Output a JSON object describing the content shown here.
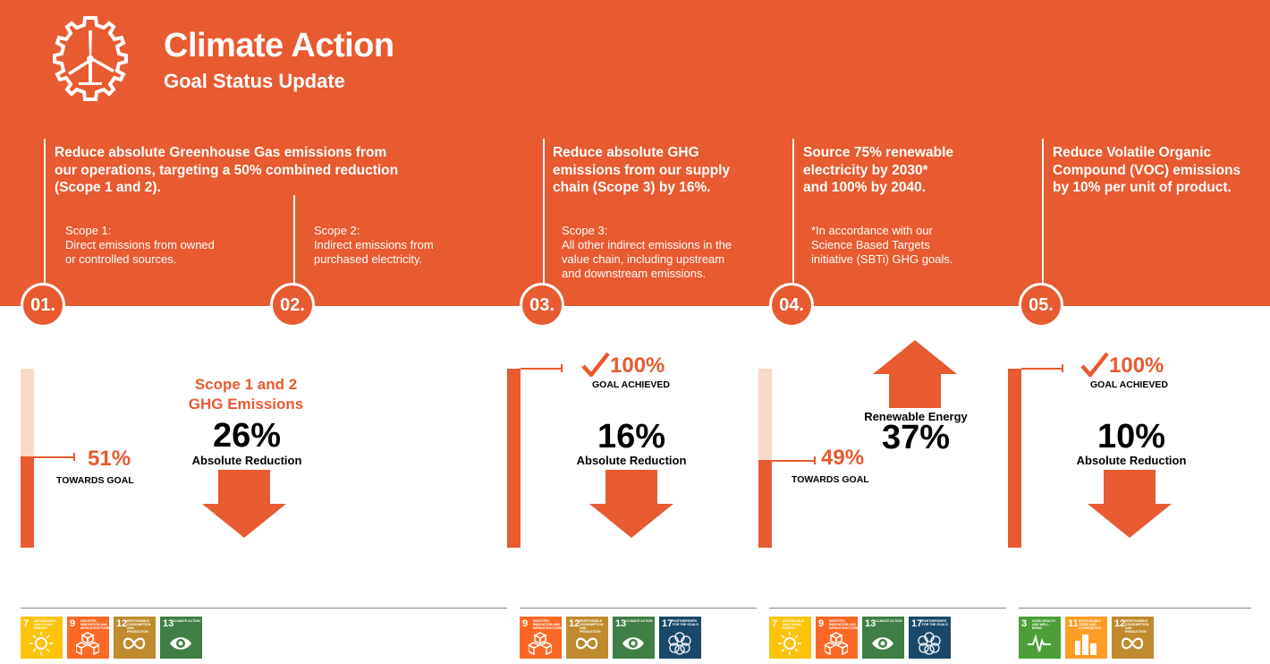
{
  "header": {
    "title": "Climate Action",
    "subtitle": "Goal Status Update",
    "icon": "wind-turbine-gear-icon"
  },
  "goals": [
    {
      "text": [
        "Reduce absolute Greenhouse Gas emissions from",
        "our operations, targeting a 50% combined reduction",
        "(Scope 1 and 2)."
      ]
    },
    {
      "text": [
        "Reduce absolute GHG",
        "emissions from our supply",
        "chain (Scope 3) by 16%."
      ]
    },
    {
      "text": [
        "Source 75% renewable",
        "electricity by 2030*",
        "and 100% by 2040."
      ]
    },
    {
      "text": [
        "Reduce Volatile Organic",
        "Compound (VOC) emissions",
        "by 10% per unit of product."
      ]
    }
  ],
  "notes": {
    "scope1": [
      "Scope 1:",
      "Direct emissions from owned",
      "or controlled sources."
    ],
    "scope2": [
      "Scope 2:",
      "Indirect emissions from",
      "purchased electricity."
    ],
    "scope3": [
      "Scope 3:",
      "All other indirect emissions in the",
      "value chain, including upstream",
      "and downstream emissions."
    ],
    "sbti": [
      "*In accordance with our",
      "Science Based Targets",
      "initiative (SBTi) GHG goals."
    ]
  },
  "badges": [
    "01.",
    "02.",
    "03.",
    "04.",
    "05."
  ],
  "progress": {
    "g1": {
      "fraction": 0.51,
      "pct": "51%",
      "label": "TOWARDS GOAL"
    },
    "g3": {
      "fraction": 1.0,
      "pct": "100%",
      "label": "GOAL ACHIEVED"
    },
    "g4": {
      "fraction": 0.49,
      "pct": "49%",
      "label": "TOWARDS GOAL"
    },
    "g5": {
      "fraction": 1.0,
      "pct": "100%",
      "label": "GOAL ACHIEVED"
    }
  },
  "results": {
    "g1": {
      "title": [
        "Scope 1 and 2",
        "GHG Emissions"
      ],
      "value": "26%",
      "caption": "Absolute Reduction",
      "direction": "down"
    },
    "g3": {
      "value": "16%",
      "caption": "Absolute Reduction",
      "direction": "down"
    },
    "g4": {
      "title": "Renewable Energy",
      "value": "37%",
      "direction": "up"
    },
    "g5": {
      "value": "10%",
      "caption": "Absolute Reduction",
      "direction": "down"
    }
  },
  "sdg_groups": [
    [
      {
        "num": "7",
        "label": "AFFORDABLE AND CLEAN ENERGY",
        "color": "#FCC30B",
        "icon": "sun-icon"
      },
      {
        "num": "9",
        "label": "INDUSTRY, INNOVATION AND INFRASTRUCTURE",
        "color": "#FD6925",
        "icon": "cubes-icon"
      },
      {
        "num": "12",
        "label": "RESPONSIBLE CONSUMPTION AND PRODUCTION",
        "color": "#BF8B2E",
        "icon": "infinity-icon"
      },
      {
        "num": "13",
        "label": "CLIMATE ACTION",
        "color": "#3F7E44",
        "icon": "eye-icon"
      }
    ],
    [
      {
        "num": "9",
        "label": "INDUSTRY, INNOVATION AND INFRASTRUCTURE",
        "color": "#FD6925",
        "icon": "cubes-icon"
      },
      {
        "num": "12",
        "label": "RESPONSIBLE CONSUMPTION AND PRODUCTION",
        "color": "#BF8B2E",
        "icon": "infinity-icon"
      },
      {
        "num": "13",
        "label": "CLIMATE ACTION",
        "color": "#3F7E44",
        "icon": "eye-icon"
      },
      {
        "num": "17",
        "label": "PARTNERSHIPS FOR THE GOALS",
        "color": "#19486A",
        "icon": "flower-icon"
      }
    ],
    [
      {
        "num": "7",
        "label": "AFFORDABLE AND CLEAN ENERGY",
        "color": "#FCC30B",
        "icon": "sun-icon"
      },
      {
        "num": "9",
        "label": "INDUSTRY, INNOVATION AND INFRASTRUCTURE",
        "color": "#FD6925",
        "icon": "cubes-icon"
      },
      {
        "num": "13",
        "label": "CLIMATE ACTION",
        "color": "#3F7E44",
        "icon": "eye-icon"
      },
      {
        "num": "17",
        "label": "PARTNERSHIPS FOR THE GOALS",
        "color": "#19486A",
        "icon": "flower-icon"
      }
    ],
    [
      {
        "num": "3",
        "label": "GOOD HEALTH AND WELL-BEING",
        "color": "#4C9F38",
        "icon": "heartbeat-icon"
      },
      {
        "num": "11",
        "label": "SUSTAINABLE CITIES AND COMMUNITIES",
        "color": "#FD9D24",
        "icon": "buildings-icon"
      },
      {
        "num": "12",
        "label": "RESPONSIBLE CONSUMPTION AND PRODUCTION",
        "color": "#BF8B2E",
        "icon": "infinity-icon"
      }
    ]
  ],
  "colors": {
    "accent": "#E85A30",
    "light_track": "#FAD9C9"
  }
}
